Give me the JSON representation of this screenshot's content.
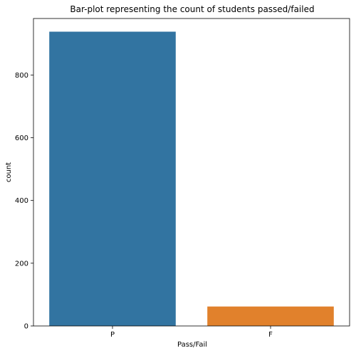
{
  "chart_data": {
    "type": "bar",
    "title": "Bar-plot representing the count of students passed/failed",
    "xlabel": "Pass/Fail",
    "ylabel": "count",
    "categories": [
      "P",
      "F"
    ],
    "values": [
      938,
      62
    ],
    "colors": [
      "#3274a1",
      "#e1812c"
    ],
    "ylim": [
      0,
      980
    ],
    "yticks": [
      0,
      200,
      400,
      600,
      800
    ],
    "grid": false,
    "legend": "none"
  }
}
